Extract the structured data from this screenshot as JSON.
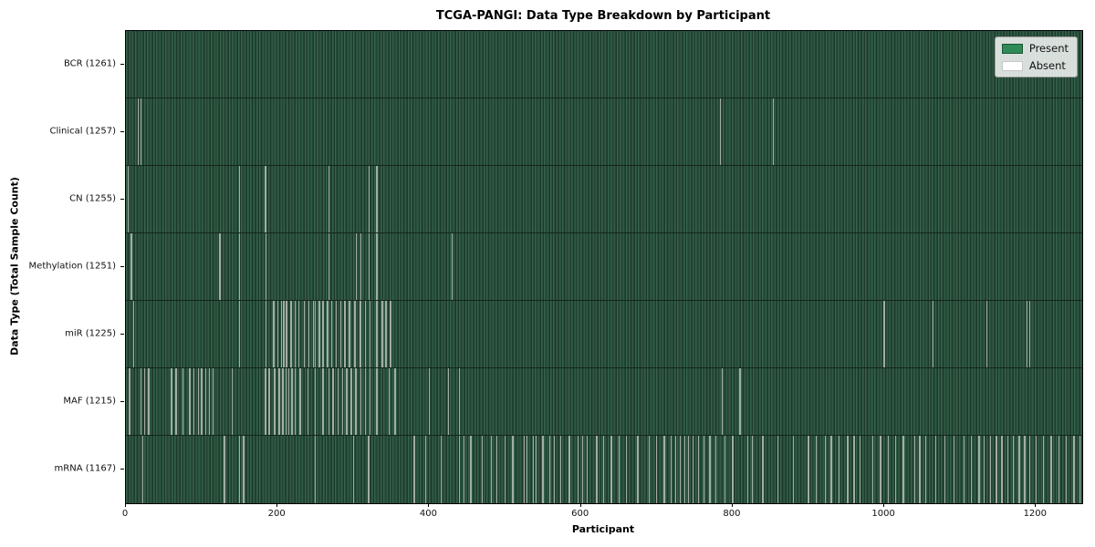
{
  "chart_data": {
    "type": "heatmap",
    "title": "TCGA-PANGI: Data Type Breakdown by Participant",
    "xlabel": "Participant",
    "ylabel": "Data Type (Total Sample Count)",
    "x_ticks": [
      0,
      200,
      400,
      600,
      800,
      1000,
      1200
    ],
    "x_max": 1261,
    "total_participants": 1261,
    "grid": false,
    "legend_position": "upper right",
    "legend": [
      {
        "label": "Present",
        "color": "#2e8b57"
      },
      {
        "label": "Absent",
        "color": "#ffffff"
      }
    ],
    "colors": {
      "present_green": "#2e8b57",
      "absent_white": "#ffffff",
      "row_texture_light": "#35634b",
      "row_texture_mid": "#2a5140",
      "row_texture_dark": "#1d3929",
      "row_divider": "#142619",
      "absent_gap_line": "#a2ada3"
    },
    "rows": [
      {
        "label": "BCR (1261)",
        "data_type": "BCR",
        "present_count": 1261,
        "absent_count": 0,
        "absent_participants": []
      },
      {
        "label": "Clinical (1257)",
        "data_type": "Clinical",
        "present_count": 1257,
        "absent_count": 4,
        "absent_participants": [
          16,
          20,
          784,
          854
        ]
      },
      {
        "label": "CN (1255)",
        "data_type": "CN",
        "present_count": 1255,
        "absent_count": 6,
        "absent_participants": [
          3,
          150,
          184,
          268,
          321,
          331
        ]
      },
      {
        "label": "Methylation (1251)",
        "data_type": "Methylation",
        "present_count": 1251,
        "absent_count": 10,
        "absent_participants": [
          7,
          124,
          150,
          185,
          268,
          304,
          310,
          321,
          331,
          430
        ]
      },
      {
        "label": "miR (1225)",
        "data_type": "miR",
        "present_count": 1225,
        "absent_count": 36,
        "absent_participants": [
          10,
          150,
          185,
          195,
          200,
          205,
          208,
          212,
          218,
          223,
          228,
          235,
          241,
          247,
          250,
          255,
          260,
          266,
          271,
          277,
          283,
          289,
          295,
          302,
          309,
          316,
          322,
          331,
          338,
          343,
          349,
          1000,
          1064,
          1135,
          1188,
          1192
        ]
      },
      {
        "label": "MAF (1215)",
        "data_type": "MAF",
        "present_count": 1215,
        "absent_count": 46,
        "absent_participants": [
          5,
          20,
          25,
          30,
          60,
          66,
          75,
          84,
          90,
          96,
          100,
          105,
          110,
          115,
          140,
          184,
          189,
          196,
          202,
          207,
          211,
          215,
          219,
          223,
          230,
          240,
          250,
          260,
          268,
          273,
          280,
          286,
          291,
          297,
          303,
          310,
          316,
          322,
          331,
          347,
          355,
          400,
          425,
          440,
          786,
          810
        ]
      },
      {
        "label": "mRNA (1167)",
        "data_type": "mRNA",
        "present_count": 1167,
        "absent_count": 94,
        "absent_participants": [
          22,
          130,
          150,
          155,
          250,
          300,
          320,
          380,
          395,
          416,
          440,
          446,
          455,
          470,
          482,
          489,
          500,
          510,
          525,
          529,
          537,
          541,
          550,
          559,
          565,
          573,
          585,
          596,
          602,
          608,
          621,
          630,
          640,
          650,
          660,
          675,
          690,
          700,
          710,
          719,
          725,
          731,
          737,
          742,
          748,
          755,
          762,
          770,
          778,
          790,
          800,
          820,
          826,
          840,
          860,
          880,
          900,
          910,
          922,
          930,
          940,
          952,
          960,
          968,
          985,
          995,
          1005,
          1015,
          1025,
          1040,
          1047,
          1055,
          1068,
          1080,
          1092,
          1105,
          1115,
          1125,
          1132,
          1140,
          1148,
          1155,
          1163,
          1170,
          1178,
          1185,
          1192,
          1200,
          1210,
          1220,
          1230,
          1240,
          1250,
          1258
        ]
      }
    ]
  }
}
